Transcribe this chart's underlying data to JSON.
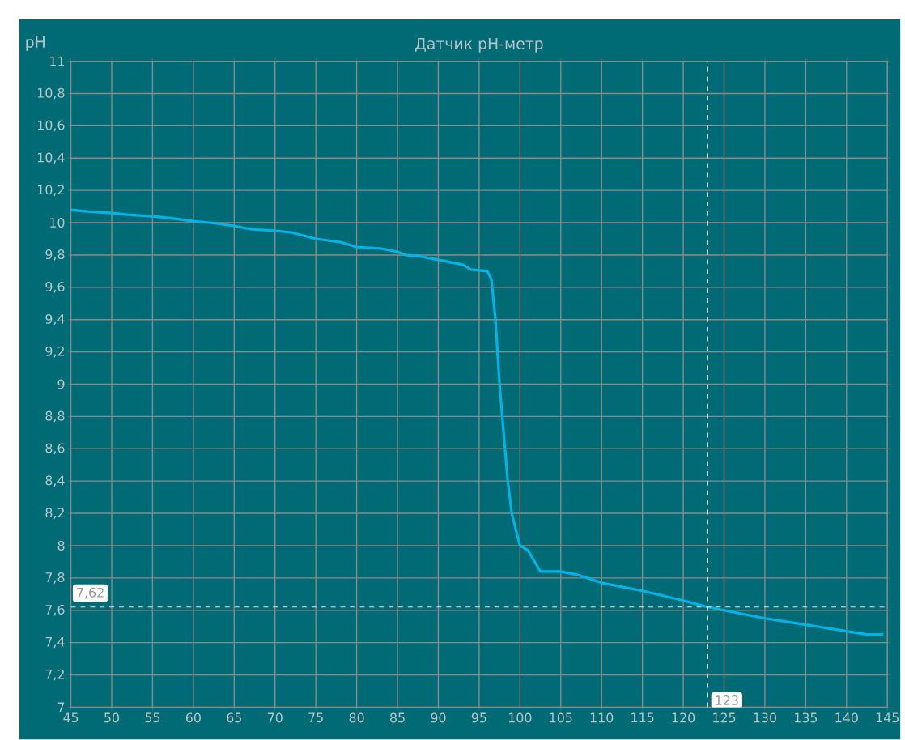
{
  "chart_data": {
    "type": "line",
    "title": "Датчик pH-метр",
    "ylabel": "pH",
    "x": [
      45,
      47,
      50,
      52,
      55,
      57,
      60,
      62,
      65,
      67,
      70,
      72,
      75,
      78,
      80,
      83,
      85,
      86,
      88,
      90,
      93,
      94,
      96,
      96.5,
      97,
      97.5,
      98,
      98.5,
      99,
      100,
      101,
      102.5,
      105,
      107,
      110,
      115,
      120,
      123,
      125,
      130,
      135,
      140,
      142.5,
      144.5
    ],
    "series": [
      {
        "color": "#00b4e8",
        "values": [
          10.08,
          10.07,
          10.06,
          10.05,
          10.04,
          10.03,
          10.01,
          10.0,
          9.98,
          9.96,
          9.95,
          9.94,
          9.9,
          9.88,
          9.85,
          9.84,
          9.82,
          9.8,
          9.79,
          9.77,
          9.74,
          9.71,
          9.7,
          9.65,
          9.4,
          9.0,
          8.7,
          8.4,
          8.2,
          8.0,
          7.97,
          7.84,
          7.84,
          7.82,
          7.77,
          7.72,
          7.66,
          7.62,
          7.6,
          7.55,
          7.51,
          7.47,
          7.45,
          7.45
        ]
      }
    ],
    "xlim": [
      45,
      145
    ],
    "xticks": [
      45,
      50,
      55,
      60,
      65,
      70,
      75,
      80,
      85,
      90,
      95,
      100,
      105,
      110,
      115,
      120,
      125,
      130,
      135,
      140,
      145
    ],
    "ylim": [
      7,
      11
    ],
    "yticks": [
      7,
      {
        "value": 7.2,
        "label": "7,2"
      },
      {
        "value": 7.4,
        "label": "7,4"
      },
      {
        "value": 7.6,
        "label": "7,6"
      },
      {
        "value": 7.8,
        "label": "7,8"
      },
      8,
      {
        "value": 8.2,
        "label": "8,2"
      },
      {
        "value": 8.4,
        "label": "8,4"
      },
      {
        "value": 8.6,
        "label": "8,6"
      },
      {
        "value": 8.8,
        "label": "8,8"
      },
      9,
      {
        "value": 9.2,
        "label": "9,2"
      },
      {
        "value": 9.4,
        "label": "9,4"
      },
      {
        "value": 9.6,
        "label": "9,6"
      },
      {
        "value": 9.8,
        "label": "9,8"
      },
      10,
      {
        "value": 10.2,
        "label": "10,2"
      },
      {
        "value": 10.4,
        "label": "10,4"
      },
      {
        "value": 10.6,
        "label": "10,6"
      },
      {
        "value": 10.8,
        "label": "10,8"
      },
      11
    ],
    "grid": true,
    "ref_lines": [
      {
        "axis": "y",
        "value": 7.62,
        "label": "7,62",
        "color": "#e0e0e0",
        "line_style": "dashed"
      },
      {
        "axis": "x",
        "value": 123,
        "label": "123",
        "color": "#e0e0e0",
        "line_style": "dashed"
      }
    ]
  }
}
